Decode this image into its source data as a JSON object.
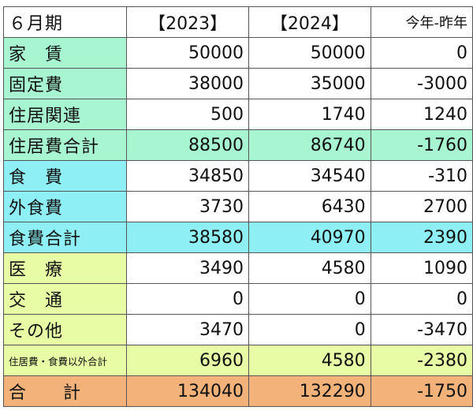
{
  "colors": {
    "mint": "#a8f5d2",
    "cyan": "#8ef0f4",
    "lime": "#e7fca5",
    "orange": "#f2b27a",
    "white": "#ffffff"
  },
  "header": {
    "period": "６月期",
    "col1": "【2023】",
    "col2": "【2024】",
    "col3": "今年-昨年"
  },
  "rows": [
    {
      "label": "家　賃",
      "y2023": "50000",
      "y2024": "50000",
      "diff": "0",
      "label_bg": "mint",
      "row_bg": "white"
    },
    {
      "label": "固定費",
      "y2023": "38000",
      "y2024": "35000",
      "diff": "-3000",
      "label_bg": "mint",
      "row_bg": "white"
    },
    {
      "label": "住居関連",
      "y2023": "500",
      "y2024": "1740",
      "diff": "1240",
      "label_bg": "mint",
      "row_bg": "white"
    },
    {
      "label": "住居費合計",
      "y2023": "88500",
      "y2024": "86740",
      "diff": "-1760",
      "label_bg": "mint",
      "row_bg": "mint"
    },
    {
      "label": "食　費",
      "y2023": "34850",
      "y2024": "34540",
      "diff": "-310",
      "label_bg": "cyan",
      "row_bg": "white"
    },
    {
      "label": "外食費",
      "y2023": "3730",
      "y2024": "6430",
      "diff": "2700",
      "label_bg": "cyan",
      "row_bg": "white"
    },
    {
      "label": "食費合計",
      "y2023": "38580",
      "y2024": "40970",
      "diff": "2390",
      "label_bg": "cyan",
      "row_bg": "cyan"
    },
    {
      "label": "医　療",
      "y2023": "3490",
      "y2024": "4580",
      "diff": "1090",
      "label_bg": "lime",
      "row_bg": "white"
    },
    {
      "label": "交　通",
      "y2023": "0",
      "y2024": "0",
      "diff": "0",
      "label_bg": "lime",
      "row_bg": "white"
    },
    {
      "label": "その他",
      "y2023": "3470",
      "y2024": "0",
      "diff": "-3470",
      "label_bg": "lime",
      "row_bg": "white"
    },
    {
      "label": "住居費・食費以外合計",
      "y2023": "6960",
      "y2024": "4580",
      "diff": "-2380",
      "label_bg": "lime",
      "row_bg": "lime",
      "small": true
    },
    {
      "label": "合　　計",
      "y2023": "134040",
      "y2024": "132290",
      "diff": "-1750",
      "label_bg": "orange",
      "row_bg": "orange"
    }
  ]
}
